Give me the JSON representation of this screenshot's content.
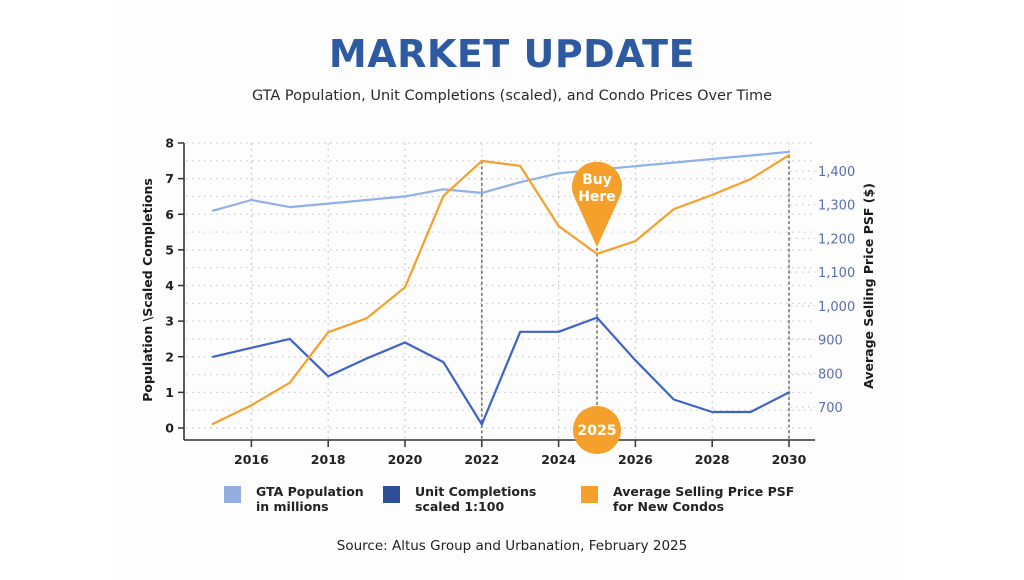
{
  "header": {
    "title": "MARKET UPDATE",
    "subtitle": "GTA Population, Unit Completions (scaled), and Condo Prices Over Time"
  },
  "colors": {
    "title": "#2d5aa0",
    "population": "#8fb0e8",
    "completions": "#3e63c8",
    "price": "#f5a02a",
    "legend_population": "#94aee0",
    "legend_completions": "#2c4f98",
    "legend_price": "#f5a02a"
  },
  "chart_data": {
    "type": "line",
    "title": "MARKET UPDATE",
    "subtitle": "GTA Population, Unit Completions (scaled), and Condo Prices Over Time",
    "x": [
      2015,
      2016,
      2017,
      2018,
      2019,
      2020,
      2021,
      2022,
      2023,
      2024,
      2025,
      2026,
      2027,
      2028,
      2029,
      2030
    ],
    "xlim": [
      2015,
      2030
    ],
    "xticks": [
      "2016",
      "2018",
      "2020",
      "2022",
      "2024",
      "2026",
      "2028",
      "2030"
    ],
    "xtick_values": [
      2016,
      2018,
      2020,
      2022,
      2024,
      2026,
      2028,
      2030
    ],
    "ylabel": "Population \\Scaled Completions",
    "ylim": [
      0,
      8
    ],
    "yticks": [
      "0",
      "1",
      "2",
      "3",
      "4",
      "5",
      "6",
      "7",
      "8"
    ],
    "y2label": "Average Selling Price PSF ($)",
    "y2lim": [
      612,
      1460
    ],
    "y2ticks": [
      "700",
      "800",
      "900",
      "1,000",
      "1,100",
      "1,200",
      "1,300",
      "1,400"
    ],
    "y2tick_values": [
      700,
      800,
      900,
      1000,
      1100,
      1200,
      1300,
      1400
    ],
    "grid": true,
    "legend_position": "bottom",
    "series": [
      {
        "name": "GTA Population in millions",
        "axis": "left",
        "values": [
          6.1,
          6.4,
          6.2,
          6.3,
          6.4,
          6.5,
          6.7,
          6.6,
          6.9,
          7.15,
          7.25,
          7.35,
          7.45,
          7.55,
          7.65,
          7.75
        ]
      },
      {
        "name": "Unit Completions scaled 1:100",
        "axis": "left",
        "values": [
          2.0,
          2.25,
          2.5,
          1.45,
          1.95,
          2.4,
          1.85,
          0.1,
          2.7,
          2.7,
          3.1,
          1.9,
          0.8,
          0.45,
          0.45,
          1.0
        ]
      },
      {
        "name": "Average Selling Price PSF for New Condos",
        "axis": "right",
        "values": [
          650,
          705,
          772,
          922,
          963,
          1055,
          1326,
          1430,
          1415,
          1237,
          1154,
          1192,
          1287,
          1329,
          1376,
          1447
        ]
      }
    ],
    "annotations": {
      "pin_label": "Buy\nHere",
      "pin_year": 2025,
      "badge_label": "2025",
      "dashed_markers": [
        2022,
        2025,
        2030
      ]
    }
  },
  "legend": [
    {
      "label": "GTA Population\nin millions"
    },
    {
      "label": "Unit Completions\nscaled 1:100"
    },
    {
      "label": "Average Selling Price PSF\nfor New Condos"
    }
  ],
  "footer": {
    "source": "Source: Altus Group and Urbanation, February 2025"
  }
}
